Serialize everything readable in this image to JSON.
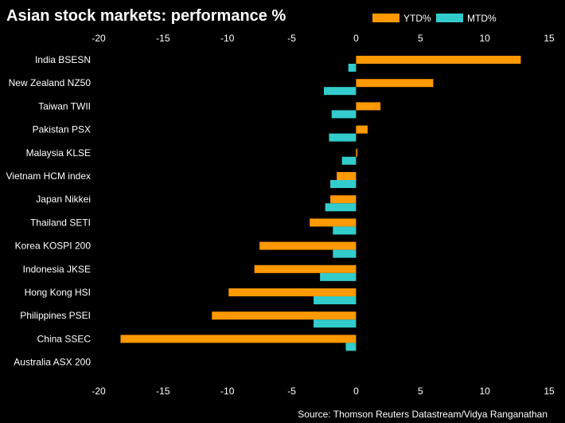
{
  "chart_data": {
    "type": "bar",
    "orientation": "horizontal",
    "title": "Asian stock markets: performance %",
    "source": "Source: Thomson Reuters Datastream/Vidya Ranganathan",
    "xlim": [
      -20,
      15
    ],
    "xticks": [
      "-20",
      "-15",
      "-10",
      "-5",
      "0",
      "5",
      "10",
      "15"
    ],
    "xtick_values": [
      -20,
      -15,
      -10,
      -5,
      0,
      5,
      10,
      15
    ],
    "categories": [
      "India BSESN",
      "New Zealand NZ50",
      "Taiwan TWII",
      "Pakistan PSX",
      "Malaysia KLSE",
      "Vietnam HCM index",
      "Japan Nikkei",
      "Thailand SETI",
      "Korea KOSPI 200",
      "Indonesia JKSE",
      "Hong Kong HSI",
      "Philippines PSEI",
      "China SSEC",
      "Australia ASX 200"
    ],
    "series": [
      {
        "name": "YTD%",
        "color": "#ff9900",
        "values": [
          12.8,
          6.0,
          1.9,
          0.9,
          0.1,
          -1.5,
          -2.0,
          -3.6,
          -7.5,
          -7.9,
          -9.9,
          -11.2,
          -18.3,
          0
        ]
      },
      {
        "name": "MTD%",
        "color": "#33cccc",
        "values": [
          -0.6,
          -2.5,
          -1.9,
          -2.1,
          -1.1,
          -2.0,
          -2.4,
          -1.8,
          -1.8,
          -2.8,
          -3.3,
          -3.3,
          -0.8,
          0
        ]
      }
    ],
    "legend": "top-right",
    "grid": false
  }
}
